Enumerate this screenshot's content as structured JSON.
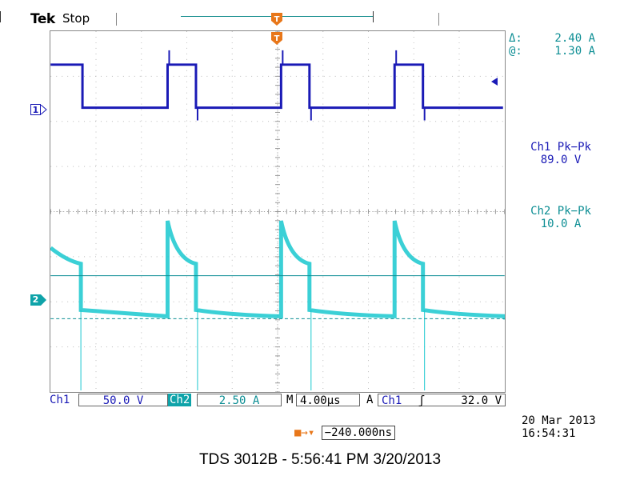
{
  "header": {
    "brand": "Tek",
    "run_state": "Stop"
  },
  "cursor_readout": {
    "delta_label": "Δ:",
    "delta_value": "2.40 A",
    "at_label": "@:",
    "at_value": "1.30 A"
  },
  "measurements": [
    {
      "label": "Ch1 Pk−Pk",
      "value": "89.0 V"
    },
    {
      "label": "Ch2 Pk−Pk",
      "value": "10.0 A"
    }
  ],
  "channels": {
    "ch1": {
      "marker": "1",
      "label": "Ch1",
      "scale": "50.0 V",
      "color": "#1a1ab6"
    },
    "ch2": {
      "marker": "2",
      "label": "Ch2",
      "scale": "2.50 A",
      "color": "#19c8cf"
    }
  },
  "timebase": {
    "prefix": "M",
    "value": "4.00µs"
  },
  "trigger": {
    "mode": "A",
    "source": "Ch1",
    "slope_icon": "rising-edge-icon",
    "slope_glyph": "ʃ",
    "level": "32.0 V"
  },
  "trigger_position": {
    "value": "−240.000ns"
  },
  "datetime": {
    "date": "20 Mar 2013",
    "time": "16:54:31"
  },
  "caption": "TDS 3012B - 5:56:41 PM   3/20/2013",
  "waveform_params": {
    "period_us": 10.0,
    "high_time_us": 2.5,
    "time_per_div_us": 4.0,
    "first_rise_us": 0.0
  },
  "colors": {
    "grid": "#888888",
    "trigger": "#e8771a",
    "cursor": "#0d8e94"
  }
}
